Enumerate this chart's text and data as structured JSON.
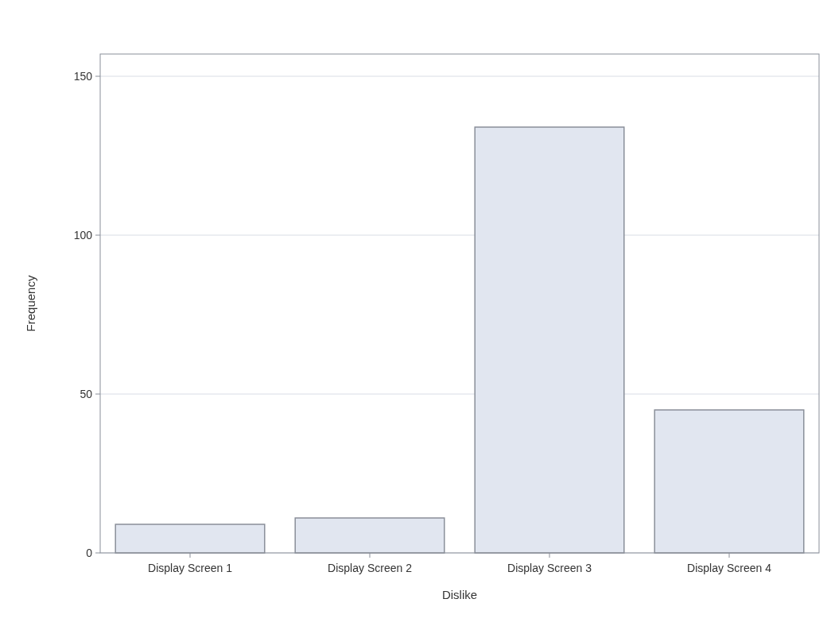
{
  "chart_data": {
    "type": "bar",
    "xlabel": "Dislike",
    "ylabel": "Frequency",
    "categories": [
      "Display Screen 1",
      "Display Screen 2",
      "Display Screen 3",
      "Display Screen 4"
    ],
    "values": [
      9,
      11,
      134,
      45
    ],
    "color": "#e1e6f0",
    "ylim": [
      0,
      157
    ],
    "yticks": [
      0,
      50,
      100,
      150
    ],
    "grid": "y"
  }
}
